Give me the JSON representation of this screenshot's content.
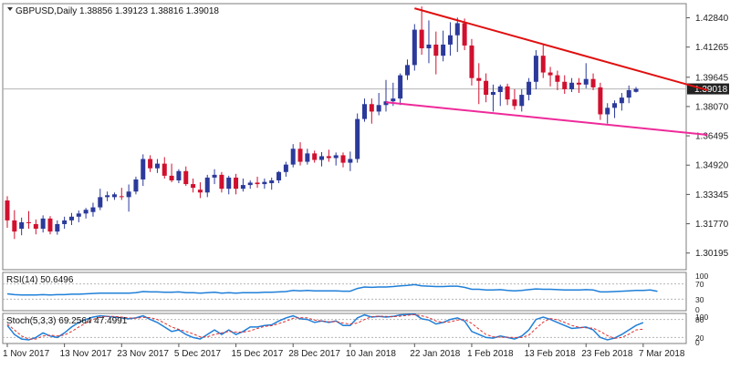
{
  "chart_data": [
    {
      "type": "candlestick",
      "title": "GBPUSD,Daily  1.38856 1.39123 1.38816 1.39018",
      "current_price": 1.39018,
      "current_price_label": "1.39018",
      "ylim": [
        1.293,
        1.436
      ],
      "y_ticks": [
        1.4284,
        1.41265,
        1.39645,
        1.3807,
        1.36495,
        1.3492,
        1.33345,
        1.3177,
        1.30195
      ],
      "y_tick_labels": [
        "1.42840",
        "1.41265",
        "1.39645",
        "1.38070",
        "1.36495",
        "1.34920",
        "1.33345",
        "1.31770",
        "1.30195"
      ],
      "x_tick_labels": [
        {
          "label": "1 Nov 2017",
          "index": 0
        },
        {
          "label": "13 Nov 2017",
          "index": 8
        },
        {
          "label": "23 Nov 2017",
          "index": 16
        },
        {
          "label": "5 Dec 2017",
          "index": 24
        },
        {
          "label": "15 Dec 2017",
          "index": 32
        },
        {
          "label": "28 Dec 2017",
          "index": 40
        },
        {
          "label": "10 Jan 2018",
          "index": 48
        },
        {
          "label": "22 Jan 2018",
          "index": 57
        },
        {
          "label": "1 Feb 2018",
          "index": 65
        },
        {
          "label": "13 Feb 2018",
          "index": 73
        },
        {
          "label": "23 Feb 2018",
          "index": 81
        },
        {
          "label": "7 Mar 2018",
          "index": 89
        }
      ],
      "colors": {
        "up": "#2b3a9a",
        "down": "#d0102e",
        "trend_upper": "#e01010",
        "trend_lower": "#ee2a9a",
        "grid": "#b5b5b5"
      },
      "candles": [
        {
          "o": 1.3302,
          "h": 1.3325,
          "l": 1.3155,
          "c": 1.3195
        },
        {
          "o": 1.3195,
          "h": 1.325,
          "l": 1.3095,
          "c": 1.3135
        },
        {
          "o": 1.315,
          "h": 1.321,
          "l": 1.3115,
          "c": 1.3185
        },
        {
          "o": 1.3185,
          "h": 1.3245,
          "l": 1.315,
          "c": 1.318
        },
        {
          "o": 1.3175,
          "h": 1.32,
          "l": 1.312,
          "c": 1.315
        },
        {
          "o": 1.315,
          "h": 1.3222,
          "l": 1.313,
          "c": 1.3205
        },
        {
          "o": 1.3205,
          "h": 1.3218,
          "l": 1.312,
          "c": 1.3135
        },
        {
          "o": 1.3135,
          "h": 1.3195,
          "l": 1.3118,
          "c": 1.3175
        },
        {
          "o": 1.3175,
          "h": 1.3215,
          "l": 1.315,
          "c": 1.3195
        },
        {
          "o": 1.3195,
          "h": 1.3235,
          "l": 1.317,
          "c": 1.3215
        },
        {
          "o": 1.3215,
          "h": 1.3248,
          "l": 1.3185,
          "c": 1.3232
        },
        {
          "o": 1.3232,
          "h": 1.3262,
          "l": 1.3205,
          "c": 1.3252
        },
        {
          "o": 1.324,
          "h": 1.329,
          "l": 1.3215,
          "c": 1.3265
        },
        {
          "o": 1.3265,
          "h": 1.3365,
          "l": 1.325,
          "c": 1.332
        },
        {
          "o": 1.332,
          "h": 1.335,
          "l": 1.3298,
          "c": 1.333
        },
        {
          "o": 1.332,
          "h": 1.3345,
          "l": 1.3305,
          "c": 1.3335
        },
        {
          "o": 1.3325,
          "h": 1.337,
          "l": 1.3305,
          "c": 1.332
        },
        {
          "o": 1.332,
          "h": 1.3388,
          "l": 1.3242,
          "c": 1.335
        },
        {
          "o": 1.335,
          "h": 1.343,
          "l": 1.3335,
          "c": 1.3415
        },
        {
          "o": 1.3415,
          "h": 1.355,
          "l": 1.338,
          "c": 1.3525
        },
        {
          "o": 1.3525,
          "h": 1.3545,
          "l": 1.3455,
          "c": 1.3475
        },
        {
          "o": 1.3475,
          "h": 1.3525,
          "l": 1.345,
          "c": 1.35
        },
        {
          "o": 1.35,
          "h": 1.3535,
          "l": 1.342,
          "c": 1.3435
        },
        {
          "o": 1.3435,
          "h": 1.35,
          "l": 1.34,
          "c": 1.341
        },
        {
          "o": 1.341,
          "h": 1.347,
          "l": 1.3395,
          "c": 1.346
        },
        {
          "o": 1.346,
          "h": 1.3485,
          "l": 1.338,
          "c": 1.339
        },
        {
          "o": 1.339,
          "h": 1.342,
          "l": 1.3345,
          "c": 1.337
        },
        {
          "o": 1.336,
          "h": 1.34,
          "l": 1.3315,
          "c": 1.3345
        },
        {
          "o": 1.3345,
          "h": 1.344,
          "l": 1.332,
          "c": 1.3425
        },
        {
          "o": 1.3425,
          "h": 1.347,
          "l": 1.339,
          "c": 1.344
        },
        {
          "o": 1.344,
          "h": 1.3455,
          "l": 1.3345,
          "c": 1.3365
        },
        {
          "o": 1.3365,
          "h": 1.3435,
          "l": 1.3335,
          "c": 1.3425
        },
        {
          "o": 1.3425,
          "h": 1.3445,
          "l": 1.3335,
          "c": 1.3365
        },
        {
          "o": 1.3365,
          "h": 1.342,
          "l": 1.335,
          "c": 1.3385
        },
        {
          "o": 1.3385,
          "h": 1.341,
          "l": 1.3365,
          "c": 1.3398
        },
        {
          "o": 1.3398,
          "h": 1.343,
          "l": 1.337,
          "c": 1.339
        },
        {
          "o": 1.339,
          "h": 1.342,
          "l": 1.3365,
          "c": 1.3402
        },
        {
          "o": 1.3395,
          "h": 1.3425,
          "l": 1.336,
          "c": 1.341
        },
        {
          "o": 1.341,
          "h": 1.346,
          "l": 1.3395,
          "c": 1.3455
        },
        {
          "o": 1.3455,
          "h": 1.351,
          "l": 1.343,
          "c": 1.3495
        },
        {
          "o": 1.3495,
          "h": 1.3605,
          "l": 1.348,
          "c": 1.358
        },
        {
          "o": 1.358,
          "h": 1.3615,
          "l": 1.349,
          "c": 1.351
        },
        {
          "o": 1.351,
          "h": 1.358,
          "l": 1.3495,
          "c": 1.3555
        },
        {
          "o": 1.3555,
          "h": 1.357,
          "l": 1.3505,
          "c": 1.352
        },
        {
          "o": 1.352,
          "h": 1.3562,
          "l": 1.3485,
          "c": 1.354
        },
        {
          "o": 1.354,
          "h": 1.3575,
          "l": 1.351,
          "c": 1.353
        },
        {
          "o": 1.353,
          "h": 1.356,
          "l": 1.349,
          "c": 1.3545
        },
        {
          "o": 1.3545,
          "h": 1.356,
          "l": 1.348,
          "c": 1.3505
        },
        {
          "o": 1.3505,
          "h": 1.3565,
          "l": 1.346,
          "c": 1.3525
        },
        {
          "o": 1.3525,
          "h": 1.377,
          "l": 1.3505,
          "c": 1.374
        },
        {
          "o": 1.374,
          "h": 1.385,
          "l": 1.3725,
          "c": 1.382
        },
        {
          "o": 1.382,
          "h": 1.385,
          "l": 1.3715,
          "c": 1.378
        },
        {
          "o": 1.378,
          "h": 1.388,
          "l": 1.376,
          "c": 1.3815
        },
        {
          "o": 1.3815,
          "h": 1.395,
          "l": 1.378,
          "c": 1.3835
        },
        {
          "o": 1.3835,
          "h": 1.3935,
          "l": 1.381,
          "c": 1.385
        },
        {
          "o": 1.385,
          "h": 1.3985,
          "l": 1.3815,
          "c": 1.3975
        },
        {
          "o": 1.3975,
          "h": 1.406,
          "l": 1.395,
          "c": 1.403
        },
        {
          "o": 1.403,
          "h": 1.425,
          "l": 1.4,
          "c": 1.422
        },
        {
          "o": 1.422,
          "h": 1.4345,
          "l": 1.4085,
          "c": 1.412
        },
        {
          "o": 1.412,
          "h": 1.427,
          "l": 1.404,
          "c": 1.414
        },
        {
          "o": 1.414,
          "h": 1.421,
          "l": 1.398,
          "c": 1.408
        },
        {
          "o": 1.408,
          "h": 1.4215,
          "l": 1.405,
          "c": 1.414
        },
        {
          "o": 1.414,
          "h": 1.426,
          "l": 1.408,
          "c": 1.419
        },
        {
          "o": 1.419,
          "h": 1.4285,
          "l": 1.41,
          "c": 1.4255
        },
        {
          "o": 1.4255,
          "h": 1.428,
          "l": 1.411,
          "c": 1.4135
        },
        {
          "o": 1.4135,
          "h": 1.417,
          "l": 1.392,
          "c": 1.396
        },
        {
          "o": 1.396,
          "h": 1.404,
          "l": 1.382,
          "c": 1.3945
        },
        {
          "o": 1.3945,
          "h": 1.3985,
          "l": 1.383,
          "c": 1.387
        },
        {
          "o": 1.387,
          "h": 1.3925,
          "l": 1.378,
          "c": 1.3885
        },
        {
          "o": 1.3885,
          "h": 1.3925,
          "l": 1.381,
          "c": 1.3915
        },
        {
          "o": 1.3915,
          "h": 1.393,
          "l": 1.3815,
          "c": 1.3845
        },
        {
          "o": 1.3845,
          "h": 1.39,
          "l": 1.379,
          "c": 1.381
        },
        {
          "o": 1.381,
          "h": 1.39,
          "l": 1.378,
          "c": 1.387
        },
        {
          "o": 1.387,
          "h": 1.396,
          "l": 1.384,
          "c": 1.394
        },
        {
          "o": 1.394,
          "h": 1.411,
          "l": 1.39,
          "c": 1.408
        },
        {
          "o": 1.408,
          "h": 1.4145,
          "l": 1.396,
          "c": 1.399
        },
        {
          "o": 1.399,
          "h": 1.402,
          "l": 1.3915,
          "c": 1.3975
        },
        {
          "o": 1.3975,
          "h": 1.4,
          "l": 1.3895,
          "c": 1.394
        },
        {
          "o": 1.394,
          "h": 1.3975,
          "l": 1.3875,
          "c": 1.39
        },
        {
          "o": 1.39,
          "h": 1.396,
          "l": 1.3885,
          "c": 1.3935
        },
        {
          "o": 1.3935,
          "h": 1.396,
          "l": 1.388,
          "c": 1.3925
        },
        {
          "o": 1.3925,
          "h": 1.404,
          "l": 1.3905,
          "c": 1.3955
        },
        {
          "o": 1.3955,
          "h": 1.3985,
          "l": 1.3895,
          "c": 1.391
        },
        {
          "o": 1.391,
          "h": 1.3935,
          "l": 1.3735,
          "c": 1.3765
        },
        {
          "o": 1.3765,
          "h": 1.3825,
          "l": 1.3715,
          "c": 1.38
        },
        {
          "o": 1.38,
          "h": 1.384,
          "l": 1.3745,
          "c": 1.3825
        },
        {
          "o": 1.3825,
          "h": 1.388,
          "l": 1.3785,
          "c": 1.3855
        },
        {
          "o": 1.3855,
          "h": 1.392,
          "l": 1.3825,
          "c": 1.3895
        },
        {
          "o": 1.3886,
          "h": 1.3912,
          "l": 1.3882,
          "c": 1.3902
        }
      ],
      "trendlines": [
        {
          "name": "upper",
          "from": {
            "index": 57,
            "price": 1.4335
          },
          "to": {
            "index": 98,
            "price": 1.3895
          }
        },
        {
          "name": "lower",
          "from": {
            "index": 53,
            "price": 1.383
          },
          "to": {
            "index": 98,
            "price": 1.3655
          }
        }
      ]
    },
    {
      "type": "line",
      "title": "RSI(14) 50.6496",
      "ylim": [
        0,
        100
      ],
      "y_tick_labels": [
        "100",
        "70",
        "30",
        "0"
      ],
      "levels": [
        70,
        30
      ],
      "series": [
        {
          "color": "#1f7fd8",
          "values": [
            44,
            42,
            41,
            41,
            41,
            42,
            41,
            42,
            42,
            43,
            43,
            44,
            45,
            46,
            46,
            46,
            46,
            46,
            47,
            50,
            49,
            49,
            48,
            48,
            49,
            47,
            47,
            46,
            47,
            48,
            46,
            47,
            46,
            47,
            47,
            47,
            48,
            48,
            49,
            50,
            53,
            52,
            53,
            52,
            52,
            52,
            52,
            51,
            51,
            58,
            62,
            61,
            62,
            62,
            63,
            65,
            66,
            68,
            65,
            64,
            63,
            63,
            64,
            64,
            61,
            56,
            56,
            54,
            54,
            55,
            53,
            52,
            53,
            55,
            57,
            56,
            56,
            55,
            54,
            54,
            54,
            55,
            54,
            49,
            49,
            50,
            51,
            52,
            53,
            53,
            54,
            50.6
          ]
        }
      ]
    },
    {
      "type": "line",
      "title": "Stoch(5,3,3) 69.2564 47.4991",
      "ylim": [
        0,
        100
      ],
      "y_tick_labels": [
        "100",
        "80",
        "20",
        "0"
      ],
      "levels": [
        80,
        20
      ],
      "series": [
        {
          "color": "#1f7fd8",
          "values": [
            60,
            30,
            15,
            12,
            20,
            35,
            25,
            20,
            35,
            55,
            70,
            80,
            88,
            92,
            90,
            88,
            85,
            82,
            85,
            92,
            80,
            70,
            55,
            40,
            45,
            30,
            20,
            15,
            30,
            45,
            30,
            45,
            30,
            40,
            55,
            55,
            60,
            62,
            75,
            85,
            92,
            82,
            80,
            70,
            75,
            70,
            75,
            60,
            60,
            85,
            95,
            88,
            90,
            88,
            90,
            95,
            96,
            98,
            82,
            78,
            65,
            70,
            80,
            85,
            75,
            40,
            30,
            20,
            18,
            25,
            20,
            15,
            25,
            45,
            80,
            88,
            80,
            70,
            60,
            50,
            52,
            55,
            45,
            20,
            12,
            18,
            30,
            45,
            60,
            69.2564
          ]
        },
        {
          "color": "#e03030",
          "dashed": true,
          "values": [
            65,
            45,
            25,
            15,
            15,
            25,
            28,
            25,
            28,
            40,
            55,
            68,
            80,
            88,
            90,
            90,
            88,
            85,
            84,
            87,
            86,
            80,
            68,
            55,
            47,
            40,
            32,
            22,
            22,
            30,
            35,
            40,
            38,
            38,
            42,
            50,
            57,
            59,
            66,
            74,
            84,
            86,
            85,
            78,
            75,
            72,
            73,
            68,
            65,
            68,
            80,
            89,
            91,
            90,
            89,
            91,
            94,
            96,
            92,
            86,
            75,
            70,
            72,
            78,
            80,
            67,
            48,
            30,
            22,
            21,
            21,
            20,
            20,
            28,
            50,
            71,
            83,
            79,
            70,
            60,
            54,
            52,
            51,
            40,
            26,
            17,
            20,
            31,
            45,
            47.4991
          ]
        }
      ]
    }
  ]
}
